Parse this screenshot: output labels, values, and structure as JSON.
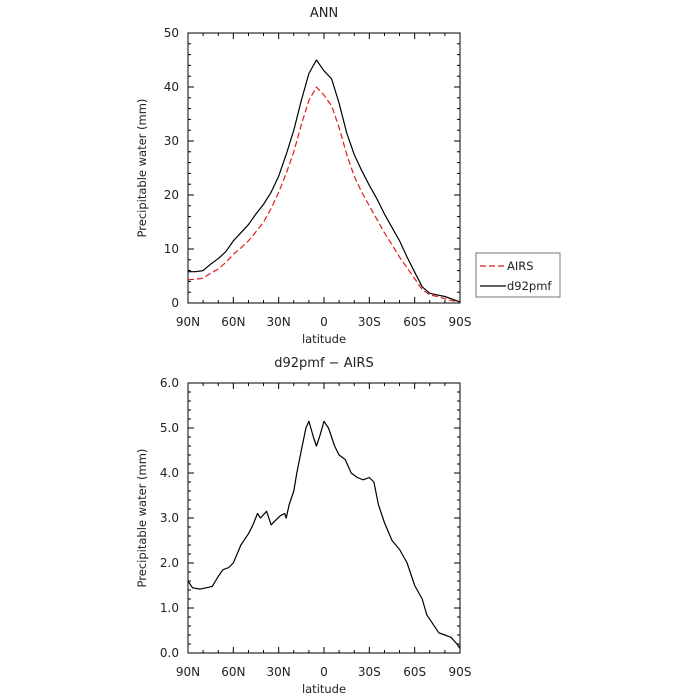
{
  "chart_data": [
    {
      "type": "line",
      "title": "ANN",
      "xlabel": "latitude",
      "ylabel": "Precipitable water (mm)",
      "xlim": [
        90,
        -90
      ],
      "ylim": [
        0,
        50
      ],
      "x_ticks": [
        90,
        60,
        30,
        0,
        -30,
        -60,
        -90
      ],
      "x_tick_labels": [
        "90N",
        "60N",
        "30N",
        "0",
        "30S",
        "60S",
        "90S"
      ],
      "y_ticks": [
        0,
        10,
        20,
        30,
        40,
        50
      ],
      "y_tick_labels": [
        "0",
        "10",
        "20",
        "30",
        "40",
        "50"
      ],
      "grid": false,
      "legend_position": "right, outside plot",
      "series": [
        {
          "name": "AIRS",
          "color": "#e41a1c",
          "dash": "dashed",
          "points": [
            [
              90,
              4.3
            ],
            [
              85,
              4.4
            ],
            [
              80,
              4.6
            ],
            [
              75,
              5.5
            ],
            [
              70,
              6.3
            ],
            [
              65,
              7.5
            ],
            [
              60,
              9.0
            ],
            [
              55,
              10.2
            ],
            [
              50,
              11.5
            ],
            [
              45,
              13.2
            ],
            [
              40,
              15.0
            ],
            [
              35,
              17.5
            ],
            [
              30,
              20.5
            ],
            [
              25,
              24.0
            ],
            [
              20,
              28.0
            ],
            [
              15,
              33.0
            ],
            [
              10,
              37.5
            ],
            [
              5,
              40.0
            ],
            [
              0,
              38.5
            ],
            [
              -5,
              36.5
            ],
            [
              -10,
              32.5
            ],
            [
              -15,
              27.5
            ],
            [
              -20,
              23.5
            ],
            [
              -25,
              20.5
            ],
            [
              -30,
              18.0
            ],
            [
              -35,
              15.5
            ],
            [
              -40,
              13.0
            ],
            [
              -45,
              10.8
            ],
            [
              -50,
              8.5
            ],
            [
              -55,
              6.5
            ],
            [
              -60,
              4.5
            ],
            [
              -65,
              2.5
            ],
            [
              -70,
              1.5
            ],
            [
              -75,
              1.2
            ],
            [
              -80,
              0.8
            ],
            [
              -85,
              0.4
            ],
            [
              -90,
              0.2
            ]
          ]
        },
        {
          "name": "d92pmf",
          "color": "#000000",
          "dash": "solid",
          "points": [
            [
              90,
              5.8
            ],
            [
              85,
              5.8
            ],
            [
              80,
              6.0
            ],
            [
              75,
              7.2
            ],
            [
              70,
              8.2
            ],
            [
              65,
              9.5
            ],
            [
              60,
              11.5
            ],
            [
              55,
              13.0
            ],
            [
              50,
              14.5
            ],
            [
              45,
              16.5
            ],
            [
              40,
              18.3
            ],
            [
              35,
              20.5
            ],
            [
              30,
              23.5
            ],
            [
              25,
              27.5
            ],
            [
              20,
              32.0
            ],
            [
              15,
              37.5
            ],
            [
              10,
              42.5
            ],
            [
              5,
              45.0
            ],
            [
              0,
              43.0
            ],
            [
              -5,
              41.5
            ],
            [
              -10,
              37.0
            ],
            [
              -15,
              31.5
            ],
            [
              -20,
              27.5
            ],
            [
              -25,
              24.5
            ],
            [
              -30,
              21.8
            ],
            [
              -35,
              19.3
            ],
            [
              -40,
              16.5
            ],
            [
              -45,
              14.0
            ],
            [
              -50,
              11.5
            ],
            [
              -55,
              8.5
            ],
            [
              -60,
              5.7
            ],
            [
              -65,
              3.0
            ],
            [
              -70,
              1.8
            ],
            [
              -75,
              1.5
            ],
            [
              -80,
              1.2
            ],
            [
              -85,
              0.7
            ],
            [
              -90,
              0.2
            ]
          ]
        }
      ]
    },
    {
      "type": "line",
      "title": "d92pmf − AIRS",
      "xlabel": "latitude",
      "ylabel": "Precipitable water (mm)",
      "xlim": [
        90,
        -90
      ],
      "ylim": [
        0,
        6
      ],
      "x_ticks": [
        90,
        60,
        30,
        0,
        -30,
        -60,
        -90
      ],
      "x_tick_labels": [
        "90N",
        "60N",
        "30N",
        "0",
        "30S",
        "60S",
        "90S"
      ],
      "y_ticks": [
        0,
        1,
        2,
        3,
        4,
        5,
        6
      ],
      "y_tick_labels": [
        "0.0",
        "1.0",
        "2.0",
        "3.0",
        "4.0",
        "5.0",
        "6.0"
      ],
      "grid": false,
      "series": [
        {
          "color": "#000000",
          "dash": "solid",
          "points": [
            [
              90,
              1.6
            ],
            [
              87,
              1.45
            ],
            [
              82,
              1.42
            ],
            [
              78,
              1.45
            ],
            [
              74,
              1.48
            ],
            [
              70,
              1.7
            ],
            [
              67,
              1.85
            ],
            [
              63,
              1.9
            ],
            [
              60,
              2.0
            ],
            [
              55,
              2.4
            ],
            [
              50,
              2.65
            ],
            [
              47,
              2.85
            ],
            [
              44,
              3.1
            ],
            [
              42,
              3.0
            ],
            [
              38,
              3.15
            ],
            [
              35,
              2.85
            ],
            [
              32,
              2.95
            ],
            [
              29,
              3.05
            ],
            [
              26,
              3.1
            ],
            [
              25,
              3.0
            ],
            [
              23,
              3.3
            ],
            [
              20,
              3.6
            ],
            [
              18,
              4.0
            ],
            [
              15,
              4.5
            ],
            [
              12,
              5.0
            ],
            [
              10,
              5.15
            ],
            [
              7,
              4.8
            ],
            [
              5,
              4.6
            ],
            [
              3,
              4.8
            ],
            [
              0,
              5.15
            ],
            [
              -3,
              5.0
            ],
            [
              -7,
              4.6
            ],
            [
              -10,
              4.4
            ],
            [
              -14,
              4.3
            ],
            [
              -18,
              4.0
            ],
            [
              -22,
              3.9
            ],
            [
              -26,
              3.85
            ],
            [
              -30,
              3.9
            ],
            [
              -33,
              3.8
            ],
            [
              -36,
              3.3
            ],
            [
              -40,
              2.9
            ],
            [
              -45,
              2.5
            ],
            [
              -50,
              2.3
            ],
            [
              -55,
              2.0
            ],
            [
              -60,
              1.5
            ],
            [
              -65,
              1.2
            ],
            [
              -68,
              0.85
            ],
            [
              -72,
              0.65
            ],
            [
              -76,
              0.45
            ],
            [
              -80,
              0.4
            ],
            [
              -84,
              0.35
            ],
            [
              -88,
              0.2
            ],
            [
              -90,
              0.1
            ]
          ]
        }
      ]
    }
  ]
}
